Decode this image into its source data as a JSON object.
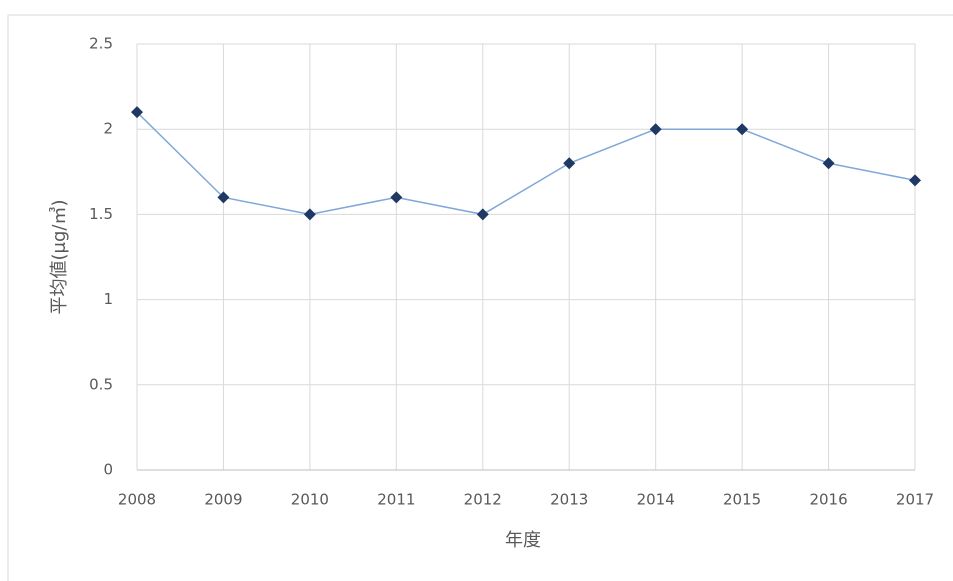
{
  "chart_data": {
    "type": "line",
    "x_label": "年度",
    "y_label": "平均値(μg/㎥)",
    "x": [
      2008,
      2009,
      2010,
      2011,
      2012,
      2013,
      2014,
      2015,
      2016,
      2017
    ],
    "values": [
      2.1,
      1.6,
      1.5,
      1.6,
      1.5,
      1.8,
      2.0,
      2.0,
      1.8,
      1.7
    ],
    "color": "#7fa7d9",
    "marker_color": "#1f3864",
    "xlim": [
      2008,
      2017
    ],
    "xticks": [
      2008,
      2009,
      2010,
      2011,
      2012,
      2013,
      2014,
      2015,
      2016,
      2017
    ],
    "ylim": [
      0,
      2.5
    ],
    "yticks": [
      0,
      0.5,
      1,
      1.5,
      2,
      2.5
    ],
    "grid": true
  }
}
